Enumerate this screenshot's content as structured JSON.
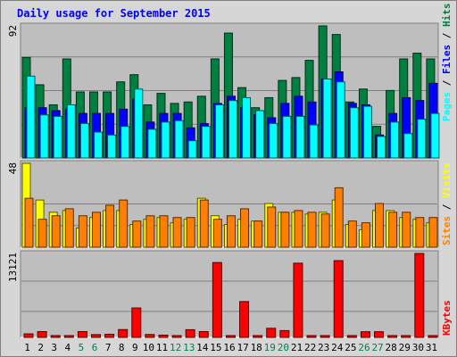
{
  "title": "Daily usage for September 2015",
  "colors": {
    "pages": "#00ffff",
    "files": "#0000ff",
    "hits": "#008040",
    "visits": "#ffff00",
    "sites": "#ff8000",
    "kbytes": "#ff0000",
    "day_weekday": "#000000",
    "day_weekend": "#00804a",
    "panel_bg": "#bebebe"
  },
  "chart_data": [
    {
      "type": "bar",
      "title": "Daily usage for September 2015",
      "categories": [
        "1",
        "2",
        "3",
        "4",
        "5",
        "6",
        "7",
        "8",
        "9",
        "10",
        "11",
        "12",
        "13",
        "14",
        "15",
        "16",
        "17",
        "18",
        "19",
        "20",
        "21",
        "22",
        "23",
        "24",
        "25",
        "26",
        "27",
        "28",
        "29",
        "30",
        "31"
      ],
      "weekend_days": [
        "5",
        "6",
        "12",
        "13",
        "19",
        "20",
        "26",
        "27"
      ],
      "ylim": [
        0,
        92
      ],
      "ytick_label": "92",
      "legend": [
        "Pages",
        "Files",
        "Hits"
      ],
      "series": [
        {
          "name": "Hits",
          "values": [
            70,
            51,
            37,
            69,
            46,
            46,
            46,
            53,
            58,
            37,
            45,
            38,
            39,
            43,
            69,
            87,
            49,
            35,
            42,
            54,
            56,
            68,
            92,
            86,
            39,
            48,
            22,
            47,
            69,
            73,
            69
          ]
        },
        {
          "name": "Files",
          "values": [
            35,
            35,
            33,
            34,
            31,
            31,
            31,
            34,
            41,
            25,
            31,
            31,
            21,
            24,
            38,
            43,
            35,
            30,
            28,
            38,
            43,
            39,
            55,
            60,
            38,
            37,
            16,
            31,
            42,
            40,
            52
          ]
        },
        {
          "name": "Pages",
          "values": [
            57,
            30,
            29,
            37,
            24,
            18,
            16,
            22,
            48,
            20,
            25,
            26,
            12,
            22,
            37,
            40,
            42,
            33,
            24,
            29,
            29,
            23,
            55,
            53,
            35,
            36,
            15,
            25,
            17,
            27,
            31
          ]
        }
      ]
    },
    {
      "type": "bar",
      "categories": [
        "1",
        "2",
        "3",
        "4",
        "5",
        "6",
        "7",
        "8",
        "9",
        "10",
        "11",
        "12",
        "13",
        "14",
        "15",
        "16",
        "17",
        "18",
        "19",
        "20",
        "21",
        "22",
        "23",
        "24",
        "25",
        "26",
        "27",
        "28",
        "29",
        "30",
        "31"
      ],
      "ylim": [
        0,
        48
      ],
      "ytick_label": "48",
      "legend": [
        "Sites",
        "Visits"
      ],
      "series": [
        {
          "name": "Visits",
          "values": [
            48,
            27,
            20,
            21,
            11,
            17,
            21,
            21,
            13,
            16,
            17,
            14,
            16,
            28,
            18,
            13,
            16,
            15,
            25,
            20,
            20,
            19,
            20,
            27,
            13,
            10,
            21,
            21,
            17,
            16,
            14
          ]
        },
        {
          "name": "Sites",
          "values": [
            28,
            16,
            18,
            22,
            18,
            20,
            24,
            27,
            15,
            18,
            18,
            17,
            17,
            27,
            16,
            18,
            22,
            15,
            23,
            20,
            21,
            20,
            19,
            34,
            15,
            14,
            25,
            20,
            20,
            17,
            17
          ]
        }
      ]
    },
    {
      "type": "bar",
      "categories": [
        "1",
        "2",
        "3",
        "4",
        "5",
        "6",
        "7",
        "8",
        "9",
        "10",
        "11",
        "12",
        "13",
        "14",
        "15",
        "16",
        "17",
        "18",
        "19",
        "20",
        "21",
        "22",
        "23",
        "24",
        "25",
        "26",
        "27",
        "28",
        "29",
        "30",
        "31"
      ],
      "ylim": [
        0,
        13121
      ],
      "ytick_label": "13121",
      "legend": [
        "KBytes"
      ],
      "series": [
        {
          "name": "KBytes",
          "values": [
            550,
            900,
            170,
            120,
            900,
            430,
            480,
            1220,
            4600,
            450,
            350,
            220,
            1200,
            900,
            11700,
            170,
            5600,
            170,
            1420,
            1060,
            11600,
            170,
            170,
            12000,
            170,
            880,
            880,
            170,
            170,
            13121,
            170
          ]
        }
      ]
    }
  ]
}
